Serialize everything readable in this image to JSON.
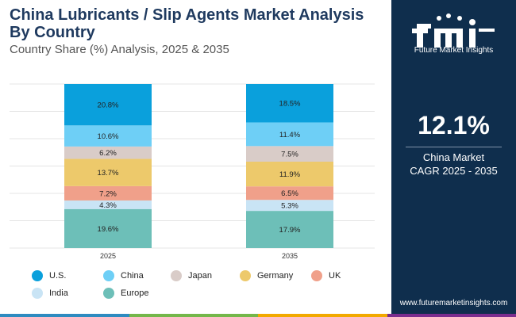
{
  "header": {
    "title": "China Lubricants / Slip Agents Market Analysis By Country",
    "subtitle": "Country Share (%) Analysis, 2025 & 2035"
  },
  "sidebar": {
    "brand_name": "Future Market Insights",
    "cagr_value": "12.1%",
    "cagr_label_1": "China Market",
    "cagr_label_2": "CAGR 2025 - 2035",
    "website": "www.futuremarketinsights.com"
  },
  "colors": {
    "sidebar_bg": "#0f2e4d",
    "title": "#1f3a5f",
    "bottom_bar": [
      "#2e8bc0",
      "#74b74a",
      "#f2a900",
      "#7b2d8e"
    ]
  },
  "chart_data": {
    "type": "bar",
    "stacked": true,
    "categories": [
      "2025",
      "2035"
    ],
    "series": [
      {
        "name": "Europe",
        "color": "#6dbfb8",
        "values": [
          19.6,
          17.9
        ],
        "labels": [
          "19.6%",
          "17.9%"
        ]
      },
      {
        "name": "India",
        "color": "#c9e4f5",
        "values": [
          4.3,
          5.3
        ],
        "labels": [
          "4.3%",
          "5.3%"
        ]
      },
      {
        "name": "UK",
        "color": "#f0a08a",
        "values": [
          7.2,
          6.5
        ],
        "labels": [
          "7.2%",
          "6.5%"
        ]
      },
      {
        "name": "Germany",
        "color": "#edc96b",
        "values": [
          13.7,
          11.9
        ],
        "labels": [
          "13.7%",
          "11.9%"
        ]
      },
      {
        "name": "Japan",
        "color": "#d9ccc8",
        "values": [
          6.2,
          7.5
        ],
        "labels": [
          "6.2%",
          "7.5%"
        ]
      },
      {
        "name": "China",
        "color": "#6ecff6",
        "values": [
          10.6,
          11.4
        ],
        "labels": [
          "10.6%",
          "11.4%"
        ]
      },
      {
        "name": "U.S.",
        "color": "#0aa0dc",
        "values": [
          20.8,
          18.5
        ],
        "labels": [
          "20.8%",
          "18.5%"
        ]
      }
    ],
    "legend_order": [
      "U.S.",
      "China",
      "Japan",
      "Germany",
      "UK",
      "India",
      "Europe"
    ],
    "grid": true,
    "legend_position": "bottom"
  }
}
